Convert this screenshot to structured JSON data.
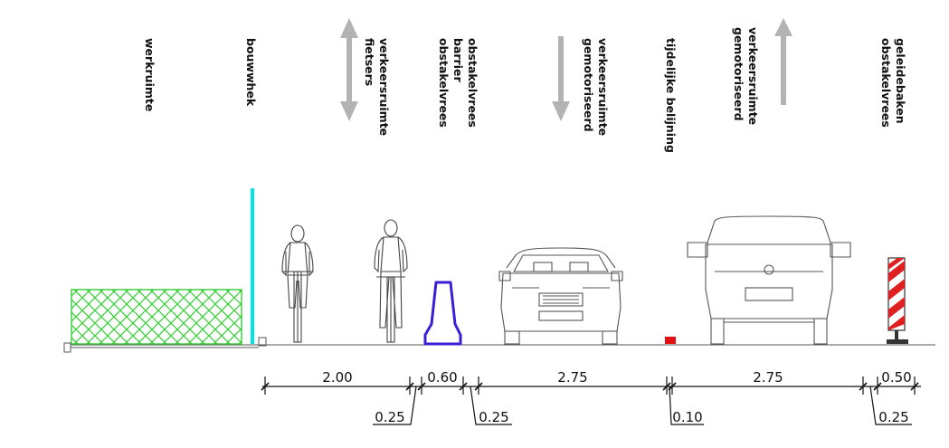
{
  "labels": {
    "werkruimte": "werkruimte",
    "bouwhek": "bouwwhek",
    "fietsers_1": "verkeersruimte",
    "fietsers_2": "fietsers",
    "barrier_1": "obstakelvrees",
    "barrier_2": "barrier",
    "barrier_3": "obstakelvrees",
    "gemot_a_1": "verkeersruimte",
    "gemot_a_2": "gemotoriseerd",
    "belijning": "tijdelijke belijning",
    "gemot_b_1": "verkeersruimte",
    "gemot_b_2": "gemotoriseerd",
    "geleide_1": "geleidebaken",
    "geleide_2": "obstakelvrees"
  },
  "dimensions": {
    "bike_lane": "2.00",
    "barrier_width": "0.60",
    "lane_a": "2.75",
    "lane_b": "2.75",
    "baken_width": "0.50",
    "clear_left": "0.25",
    "clear_right": "0.25",
    "marking": "0.10",
    "clear_baken": "0.25"
  },
  "colors": {
    "fence": "#00e5e5",
    "hatch": "#33cc33",
    "barrier": "#3a1fd6",
    "marking": "#e01010",
    "stripe": "#e02020",
    "arrow": "#b3b3b3",
    "line": "#111111"
  },
  "icons": [
    "cyclist-back-icon",
    "cyclist-front-icon",
    "car-front-icon",
    "van-rear-icon",
    "traffic-beacon-icon",
    "arrow-up-down-icon",
    "arrow-down-icon",
    "arrow-up-icon"
  ]
}
